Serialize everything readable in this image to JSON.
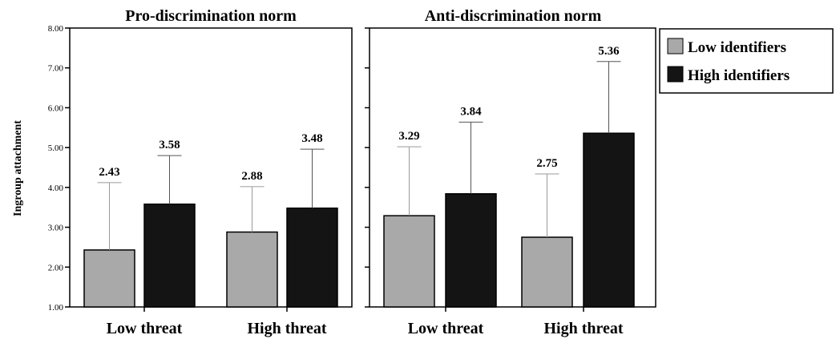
{
  "chart_data": [
    {
      "type": "bar",
      "title": "Pro-discrimination norm",
      "ylabel": "Ingroup attachment",
      "xlabel": "",
      "ylim": [
        1.0,
        8.0
      ],
      "yticks": [
        "1.00",
        "2.00",
        "3.00",
        "4.00",
        "5.00",
        "6.00",
        "7.00",
        "8.00"
      ],
      "categories": [
        "Low threat",
        "High threat"
      ],
      "series": [
        {
          "name": "Low identifiers",
          "values": [
            2.43,
            2.88
          ],
          "value_labels": [
            "2.43",
            "2.88"
          ],
          "error_upper": [
            4.12,
            4.02
          ],
          "color": "#a9a9a9"
        },
        {
          "name": "High identifiers",
          "values": [
            3.58,
            3.48
          ],
          "value_labels": [
            "3.58",
            "3.48"
          ],
          "error_upper": [
            4.8,
            4.96
          ],
          "color": "#141414"
        }
      ]
    },
    {
      "type": "bar",
      "title": "Anti-discrimination norm",
      "ylim": [
        1.0,
        8.0
      ],
      "categories": [
        "Low threat",
        "High threat"
      ],
      "series": [
        {
          "name": "Low identifiers",
          "values": [
            3.29,
            2.75
          ],
          "value_labels": [
            "3.29",
            "2.75"
          ],
          "error_upper": [
            5.02,
            4.34
          ],
          "color": "#a9a9a9"
        },
        {
          "name": "High identifiers",
          "values": [
            3.84,
            5.36
          ],
          "value_labels": [
            "3.84",
            "5.36"
          ],
          "error_upper": [
            5.64,
            7.16
          ],
          "color": "#141414"
        }
      ]
    }
  ],
  "legend": {
    "items": [
      {
        "label": "Low identifiers",
        "color": "#a9a9a9"
      },
      {
        "label": "High identifiers",
        "color": "#141414"
      }
    ]
  }
}
